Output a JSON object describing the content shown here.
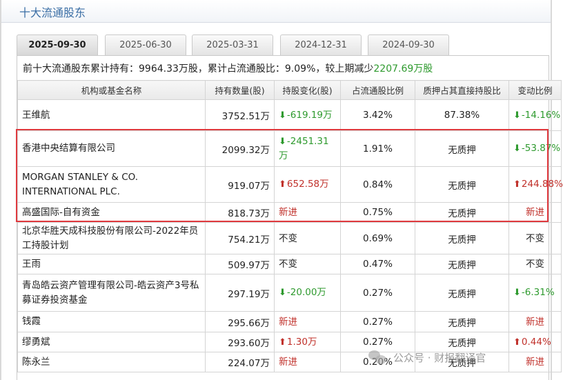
{
  "header": {
    "title": "十大流通股东"
  },
  "tabs": [
    {
      "label": "2025-09-30",
      "active": true
    },
    {
      "label": "2025-06-30",
      "active": false
    },
    {
      "label": "2025-03-31",
      "active": false
    },
    {
      "label": "2024-12-31",
      "active": false
    },
    {
      "label": "2024-09-30",
      "active": false
    }
  ],
  "summary": {
    "prefix": "前十大流通股东累计持有：9964.33万股，累计占流通股比：9.09%，较上期减少",
    "change": "2207.69万股"
  },
  "table": {
    "columns": [
      "机构或基金名称",
      "持有数量(股)",
      "持股变化(股)",
      "占流通股比例",
      "质押占其直接持股比",
      "变动比例"
    ],
    "rows": [
      {
        "name": "王维航",
        "qty": "3752.51万",
        "change": "-619.19万",
        "change_dir": "down",
        "pct": "3.42%",
        "pledge": "87.38%",
        "ratio": "-14.16%",
        "ratio_dir": "down"
      },
      {
        "name": "香港中央结算有限公司",
        "qty": "2099.32万",
        "change": "-2451.31万",
        "change_dir": "down",
        "pct": "1.91%",
        "pledge": "无质押",
        "ratio": "-53.87%",
        "ratio_dir": "down"
      },
      {
        "name": "MORGAN STANLEY & CO. INTERNATIONAL PLC.",
        "qty": "919.07万",
        "change": "652.58万",
        "change_dir": "up",
        "pct": "0.84%",
        "pledge": "无质押",
        "ratio": "244.88%",
        "ratio_dir": "up"
      },
      {
        "name": "高盛国际-自有资金",
        "qty": "818.73万",
        "change": "新进",
        "change_dir": "new",
        "pct": "0.75%",
        "pledge": "无质押",
        "ratio": "新进",
        "ratio_dir": "new"
      },
      {
        "name": "北京华胜天成科技股份有限公司-2022年员工持股计划",
        "qty": "754.21万",
        "change": "不变",
        "change_dir": "same",
        "pct": "0.69%",
        "pledge": "无质押",
        "ratio": "不变",
        "ratio_dir": "same"
      },
      {
        "name": "王雨",
        "qty": "509.97万",
        "change": "不变",
        "change_dir": "same",
        "pct": "0.47%",
        "pledge": "无质押",
        "ratio": "不变",
        "ratio_dir": "same"
      },
      {
        "name": "青岛皓云资产管理有限公司-皓云资产3号私募证券投资基金",
        "qty": "297.19万",
        "change": "-20.00万",
        "change_dir": "down",
        "pct": "0.27%",
        "pledge": "无质押",
        "ratio": "-6.31%",
        "ratio_dir": "down"
      },
      {
        "name": "钱霞",
        "qty": "295.66万",
        "change": "新进",
        "change_dir": "new",
        "pct": "0.27%",
        "pledge": "无质押",
        "ratio": "新进",
        "ratio_dir": "new"
      },
      {
        "name": "缪勇斌",
        "qty": "293.60万",
        "change": "1.30万",
        "change_dir": "up",
        "pct": "0.27%",
        "pledge": "无质押",
        "ratio": "0.44%",
        "ratio_dir": "up"
      },
      {
        "name": "陈永兰",
        "qty": "224.07万",
        "change": "新进",
        "change_dir": "new",
        "pct": "0.20%",
        "pledge": "无质押",
        "ratio": "新进",
        "ratio_dir": "new"
      }
    ]
  },
  "watermark": {
    "text": "公众号 · 财报翻译官"
  },
  "colors": {
    "up": "#c0302a",
    "down": "#2e9a2e",
    "title": "#3a6ea5",
    "highlight": "#e0393e"
  },
  "icons": {
    "up": "arrow-up-icon",
    "down": "arrow-down-icon",
    "watermark": "wechat-icon"
  }
}
